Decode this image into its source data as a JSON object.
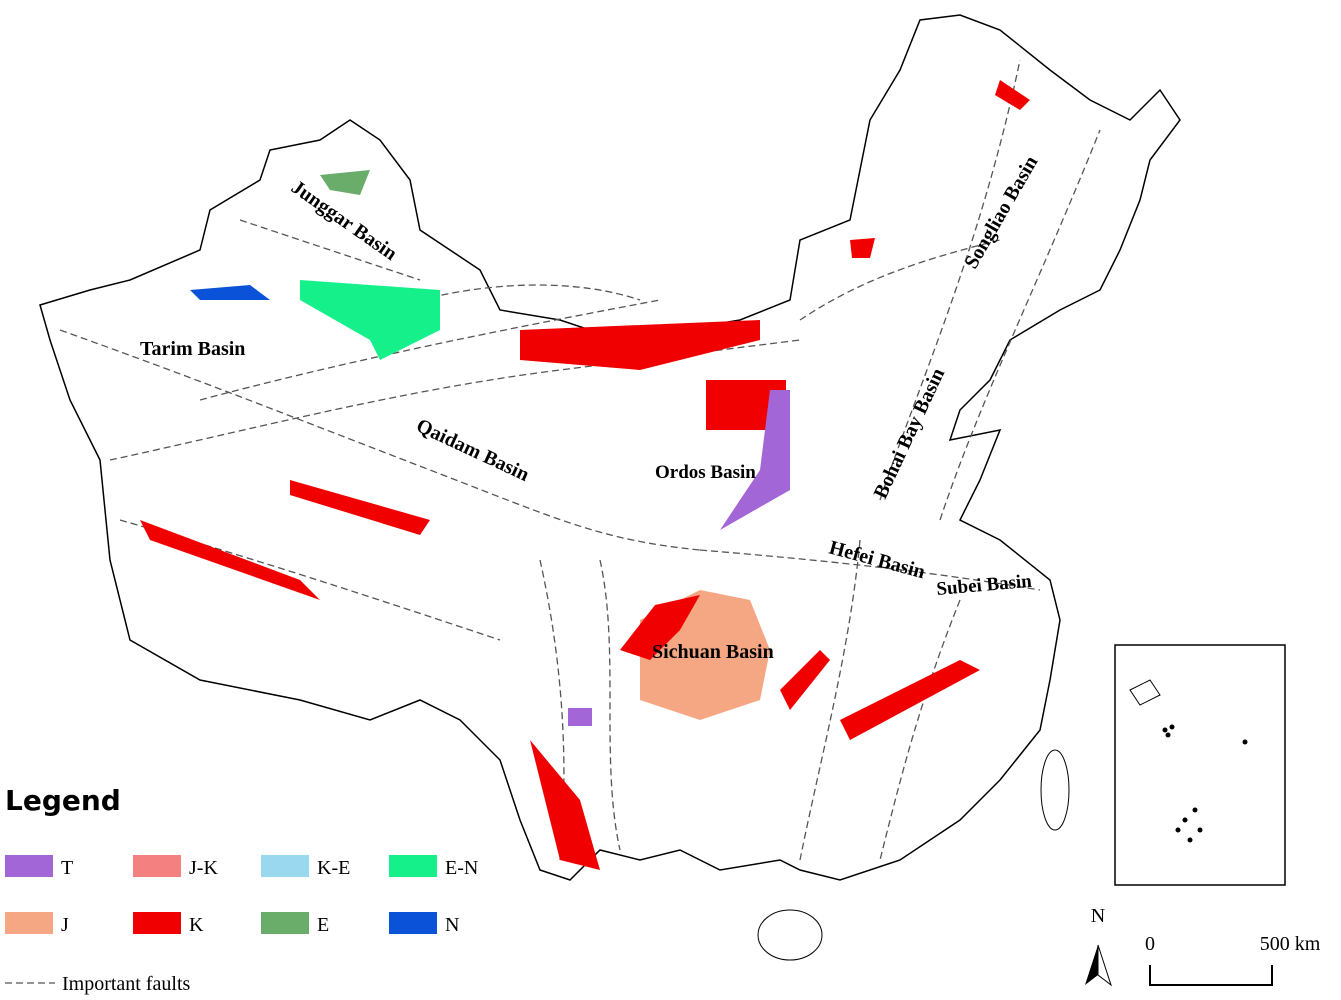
{
  "basins": [
    {
      "label": "Junggar Basin"
    },
    {
      "label": "Tarim Basin"
    },
    {
      "label": "Qaidam Basin"
    },
    {
      "label": "Ordos Basin"
    },
    {
      "label": "Songliao Basin"
    },
    {
      "label": "Bohai Bay Basin"
    },
    {
      "label": "Hefei Basin"
    },
    {
      "label": "Subei Basin"
    },
    {
      "label": "Sichuan Basin"
    }
  ],
  "legend": {
    "title": "Legend",
    "items": [
      {
        "label": "T",
        "color": "#a366d6"
      },
      {
        "label": "J-K",
        "color": "#f58080"
      },
      {
        "label": "K-E",
        "color": "#9ad8f0"
      },
      {
        "label": "E-N",
        "color": "#16f08a"
      },
      {
        "label": "J",
        "color": "#f5a682"
      },
      {
        "label": "K",
        "color": "#f00000"
      },
      {
        "label": "E",
        "color": "#6aac6a"
      },
      {
        "label": "N",
        "color": "#0a52d8"
      }
    ],
    "faults": "Important faults"
  },
  "north": "N",
  "scale_bar": {
    "start": "0",
    "end": "500 km"
  }
}
